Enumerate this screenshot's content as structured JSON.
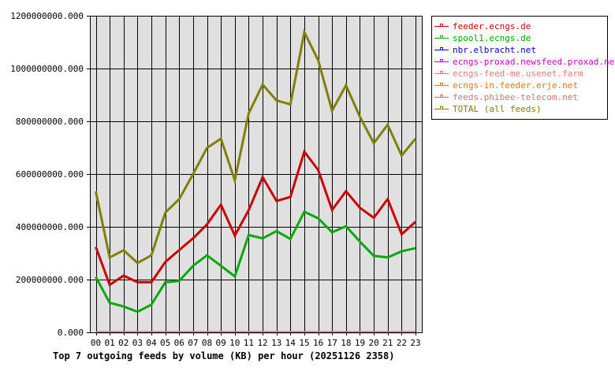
{
  "chart_data": {
    "type": "line",
    "title": "Top 7 outgoing feeds by volume (KB) per hour (20251126 2358)",
    "xlabel": "",
    "ylabel": "",
    "ylim": [
      0,
      1200000000
    ],
    "grid": true,
    "legend_position": "right-top",
    "y_ticks": [
      "0.000",
      "200000000.000",
      "400000000.000",
      "600000000.000",
      "800000000.000",
      "1000000000.000",
      "1200000000.000"
    ],
    "y_tick_values": [
      0,
      200000000,
      400000000,
      600000000,
      800000000,
      1000000000,
      1200000000
    ],
    "categories": [
      "00",
      "01",
      "02",
      "03",
      "04",
      "05",
      "06",
      "07",
      "08",
      "09",
      "10",
      "11",
      "12",
      "13",
      "14",
      "15",
      "16",
      "17",
      "18",
      "19",
      "20",
      "21",
      "22",
      "23"
    ],
    "series": [
      {
        "name": "feeder.ecngs.de",
        "color": "#cc0000",
        "values": [
          324000000,
          180000000,
          215000000,
          190000000,
          190000000,
          267000000,
          312000000,
          356000000,
          409000000,
          484000000,
          367000000,
          463000000,
          588000000,
          498000000,
          513000000,
          685000000,
          615000000,
          464000000,
          535000000,
          472000000,
          434000000,
          505000000,
          372000000,
          419000000
        ]
      },
      {
        "name": "spool1.ecngs.de",
        "color": "#00aa00",
        "values": [
          210000000,
          112000000,
          98000000,
          78000000,
          105000000,
          190000000,
          195000000,
          252000000,
          292000000,
          252000000,
          212000000,
          369000000,
          356000000,
          384000000,
          354000000,
          457000000,
          432000000,
          379000000,
          402000000,
          344000000,
          290000000,
          284000000,
          307000000,
          319000000
        ]
      },
      {
        "name": "nbr.elbracht.net",
        "color": "#0000cc",
        "values": [
          0,
          0,
          0,
          0,
          0,
          0,
          0,
          0,
          0,
          0,
          0,
          0,
          0,
          0,
          0,
          0,
          0,
          0,
          0,
          0,
          0,
          0,
          0,
          0
        ]
      },
      {
        "name": "ecngs-proxad.newsfeed.proxad.net",
        "color": "#cc00cc",
        "values": [
          0,
          0,
          0,
          0,
          0,
          0,
          0,
          0,
          0,
          0,
          0,
          0,
          0,
          0,
          0,
          0,
          0,
          0,
          0,
          0,
          0,
          0,
          0,
          0
        ]
      },
      {
        "name": "ecngs-feed-me.usenet.farm",
        "color": "#ee7777",
        "values": [
          0,
          0,
          0,
          0,
          0,
          0,
          0,
          0,
          0,
          0,
          0,
          0,
          0,
          0,
          0,
          0,
          0,
          0,
          0,
          0,
          0,
          0,
          0,
          0
        ]
      },
      {
        "name": "ecngs-in.feeder.erje.net",
        "color": "#ee7700",
        "values": [
          0,
          0,
          0,
          0,
          0,
          0,
          0,
          0,
          0,
          0,
          0,
          0,
          0,
          0,
          0,
          0,
          0,
          0,
          0,
          0,
          0,
          0,
          0,
          0
        ]
      },
      {
        "name": "feeds.phibee-telecom.net",
        "color": "#cc7777",
        "values": [
          0,
          0,
          0,
          0,
          0,
          0,
          0,
          0,
          0,
          0,
          0,
          0,
          0,
          0,
          0,
          0,
          0,
          0,
          0,
          0,
          0,
          0,
          0,
          0
        ]
      },
      {
        "name": "TOTAL (all feeds)",
        "color": "#808000",
        "values": [
          534000000,
          284000000,
          311000000,
          263000000,
          292000000,
          454000000,
          505000000,
          600000000,
          699000000,
          734000000,
          576000000,
          830000000,
          939000000,
          879000000,
          864000000,
          1138000000,
          1031000000,
          840000000,
          936000000,
          817000000,
          717000000,
          787000000,
          670000000,
          734000000
        ]
      }
    ]
  },
  "plot": {
    "background": "#e0e0e0",
    "grid_color": "#000000"
  }
}
